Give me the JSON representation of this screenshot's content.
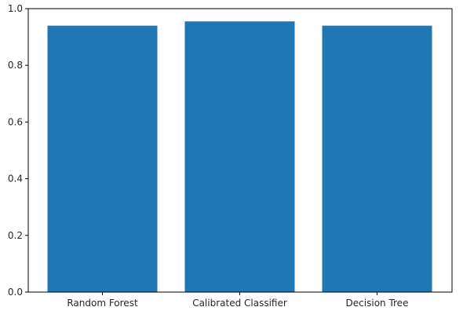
{
  "chart_data": {
    "type": "bar",
    "categories": [
      "Random Forest",
      "Calibrated Classifier",
      "Decision Tree"
    ],
    "values": [
      0.94,
      0.955,
      0.94
    ],
    "title": "",
    "xlabel": "",
    "ylabel": "",
    "ylim": [
      0,
      1.0
    ],
    "yticks": [
      "0.0",
      "0.2",
      "0.4",
      "0.6",
      "0.8",
      "1.0"
    ],
    "grid": false,
    "legend": "none",
    "colors": {
      "bar": "#1f77b4",
      "axis": "#000000",
      "text": "#262626"
    }
  }
}
